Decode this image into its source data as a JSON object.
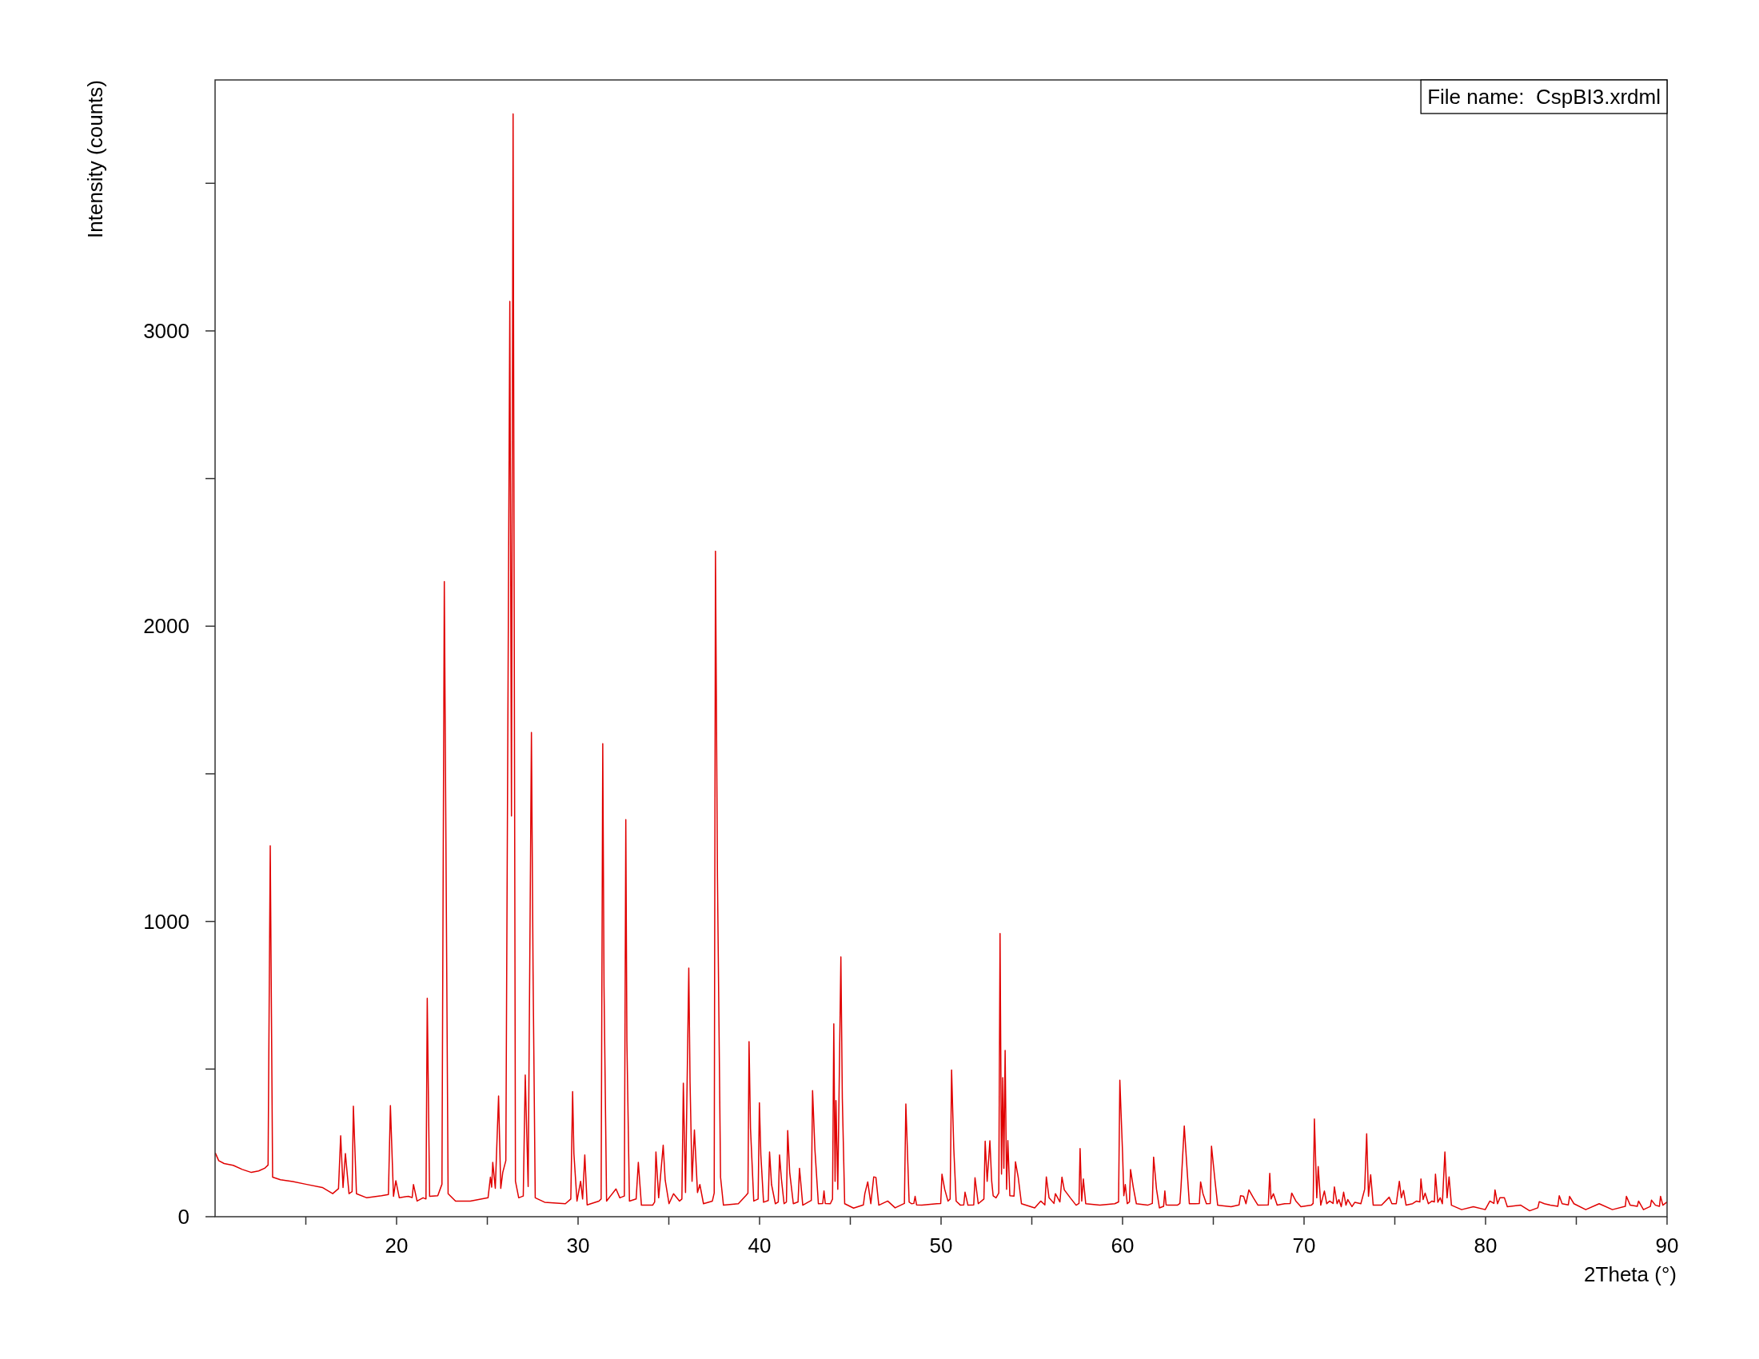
{
  "chart_data": {
    "type": "line",
    "xlabel": "2Theta (°)",
    "ylabel": "Intensity (counts)",
    "annotations": [
      "File name:  CspBI3.xrdml"
    ],
    "color": "#e00000",
    "xlim": [
      10,
      90
    ],
    "ylim": [
      0,
      3850
    ],
    "xticks": [
      {
        "value": 15,
        "label": null
      },
      20,
      {
        "value": 25,
        "label": null
      },
      30,
      {
        "value": 35,
        "label": null
      },
      40,
      {
        "value": 45,
        "label": null
      },
      50,
      {
        "value": 55,
        "label": null
      },
      60,
      {
        "value": 65,
        "label": null
      },
      70,
      {
        "value": 75,
        "label": null
      },
      80,
      {
        "value": 85,
        "label": null
      },
      90
    ],
    "yticks": [
      0,
      {
        "value": 500,
        "label": null
      },
      1000,
      {
        "value": 1500,
        "label": null
      },
      2000,
      {
        "value": 2500,
        "label": null
      },
      3000,
      {
        "value": 3500,
        "label": null
      }
    ],
    "x": [
      10.02,
      10.2,
      10.5,
      11.0,
      11.5,
      12.0,
      12.4,
      12.73,
      12.92,
      13.04,
      13.17,
      13.6,
      14.28,
      15.0,
      15.91,
      16.48,
      16.8,
      16.92,
      17.05,
      17.18,
      17.38,
      17.55,
      17.62,
      17.79,
      18.36,
      19.17,
      19.55,
      19.66,
      19.83,
      19.96,
      20.15,
      20.64,
      20.86,
      20.93,
      21.13,
      21.46,
      21.62,
      21.69,
      21.82,
      22.27,
      22.5,
      22.63,
      22.84,
      23.25,
      24.06,
      25.04,
      25.17,
      25.24,
      25.3,
      25.44,
      25.62,
      25.74,
      25.85,
      26.02,
      26.24,
      26.33,
      26.42,
      26.55,
      26.73,
      26.98,
      27.09,
      27.25,
      27.43,
      27.52,
      27.64,
      28.16,
      29.3,
      29.6,
      29.7,
      29.77,
      29.94,
      30.14,
      30.25,
      30.37,
      30.5,
      31.15,
      31.27,
      31.36,
      31.43,
      31.57,
      32.09,
      32.3,
      32.55,
      32.63,
      32.69,
      32.83,
      33.2,
      33.32,
      33.49,
      34.11,
      34.22,
      34.29,
      34.44,
      34.69,
      34.8,
      35.01,
      35.26,
      35.59,
      35.72,
      35.8,
      35.92,
      36.1,
      36.17,
      36.28,
      36.41,
      36.58,
      36.71,
      36.91,
      37.4,
      37.5,
      37.57,
      37.68,
      37.85,
      38.01,
      38.83,
      39.24,
      39.36,
      39.42,
      39.5,
      39.68,
      39.92,
      39.99,
      40.07,
      40.22,
      40.48,
      40.55,
      40.66,
      40.87,
      41.03,
      41.1,
      41.2,
      41.35,
      41.48,
      41.55,
      41.66,
      41.86,
      42.12,
      42.2,
      42.38,
      42.67,
      42.85,
      42.92,
      43.05,
      43.24,
      43.48,
      43.55,
      43.62,
      43.9,
      44.02,
      44.09,
      44.16,
      44.21,
      44.31,
      44.48,
      44.56,
      44.69,
      45.18,
      45.72,
      45.8,
      45.96,
      46.13,
      46.29,
      46.41,
      46.57,
      47.06,
      47.47,
      47.98,
      48.06,
      48.17,
      48.24,
      48.37,
      48.5,
      48.57,
      48.65,
      48.94,
      49.76,
      49.98,
      50.05,
      50.2,
      50.38,
      50.5,
      50.58,
      50.7,
      50.83,
      51.07,
      51.25,
      51.32,
      51.48,
      51.8,
      51.87,
      52.05,
      52.36,
      52.43,
      52.54,
      52.69,
      52.79,
      52.87,
      53.03,
      53.18,
      53.25,
      53.33,
      53.4,
      53.46,
      53.53,
      53.61,
      53.68,
      53.79,
      54.02,
      54.1,
      54.25,
      54.43,
      55.16,
      55.49,
      55.72,
      55.8,
      55.95,
      56.22,
      56.3,
      56.55,
      56.66,
      56.79,
      57.12,
      57.44,
      57.6,
      57.66,
      57.75,
      57.84,
      57.97,
      58.75,
      59.57,
      59.78,
      59.85,
      60.0,
      60.07,
      60.15,
      60.26,
      60.38,
      60.44,
      60.59,
      60.76,
      61.38,
      61.64,
      61.71,
      61.87,
      62.03,
      62.26,
      62.33,
      62.4,
      62.53,
      63.02,
      63.16,
      63.22,
      63.4,
      63.55,
      63.68,
      64.0,
      64.23,
      64.3,
      64.43,
      64.62,
      64.83,
      64.9,
      65.09,
      65.24,
      65.98,
      66.42,
      66.5,
      66.67,
      66.8,
      66.96,
      67.21,
      67.46,
      68.03,
      68.11,
      68.18,
      68.31,
      68.52,
      68.93,
      69.24,
      69.32,
      69.55,
      69.83,
      70.4,
      70.5,
      70.57,
      70.7,
      70.78,
      70.92,
      71.12,
      71.25,
      71.41,
      71.6,
      71.67,
      71.82,
      71.92,
      72.05,
      72.18,
      72.31,
      72.41,
      72.64,
      72.8,
      73.13,
      73.34,
      73.45,
      73.55,
      73.67,
      73.81,
      74.27,
      74.69,
      74.84,
      75.08,
      75.25,
      75.36,
      75.48,
      75.62,
      75.98,
      76.2,
      76.38,
      76.44,
      76.56,
      76.67,
      76.85,
      77.05,
      77.18,
      77.24,
      77.37,
      77.5,
      77.62,
      77.76,
      77.88,
      77.99,
      78.12,
      78.68,
      79.33,
      79.98,
      80.24,
      80.46,
      80.52,
      80.66,
      80.79,
      81.04,
      81.2,
      81.94,
      82.43,
      82.88,
      82.96,
      83.24,
      83.57,
      83.98,
      84.06,
      84.22,
      84.56,
      84.63,
      84.87,
      85.52,
      86.26,
      86.99,
      87.7,
      87.76,
      87.97,
      88.36,
      88.43,
      88.7,
      89.08,
      89.14,
      89.36,
      89.58,
      89.64,
      89.77,
      89.98
    ],
    "values": [
      215,
      190,
      180,
      174,
      160,
      150,
      155,
      164,
      175,
      1256,
      134,
      125,
      119,
      110,
      99,
      78,
      95,
      274,
      99,
      214,
      78,
      85,
      374,
      78,
      64,
      71,
      75,
      376,
      69,
      122,
      64,
      69,
      65,
      109,
      53,
      64,
      60,
      740,
      69,
      71,
      110,
      2151,
      78,
      53,
      53,
      64,
      134,
      100,
      184,
      96,
      409,
      96,
      150,
      190,
      3100,
      1357,
      3735,
      120,
      64,
      70,
      480,
      102,
      1640,
      830,
      64,
      49,
      44,
      60,
      424,
      214,
      53,
      120,
      60,
      209,
      40,
      53,
      60,
      1602,
      780,
      53,
      94,
      64,
      70,
      1345,
      595,
      53,
      60,
      184,
      39,
      39,
      50,
      219,
      64,
      242,
      124,
      44,
      78,
      53,
      60,
      452,
      82,
      842,
      455,
      120,
      294,
      82,
      109,
      44,
      53,
      80,
      2254,
      1151,
      134,
      39,
      44,
      71,
      80,
      593,
      299,
      53,
      60,
      386,
      209,
      49,
      55,
      219,
      109,
      44,
      50,
      209,
      130,
      44,
      50,
      292,
      150,
      44,
      50,
      164,
      39,
      49,
      55,
      427,
      227,
      44,
      45,
      87,
      45,
      44,
      60,
      653,
      120,
      393,
      93,
      880,
      400,
      44,
      29,
      40,
      78,
      118,
      44,
      135,
      133,
      39,
      53,
      30,
      45,
      382,
      180,
      50,
      44,
      45,
      69,
      40,
      39,
      44,
      45,
      144,
      93,
      53,
      60,
      497,
      232,
      53,
      39,
      40,
      83,
      39,
      40,
      132,
      44,
      60,
      256,
      120,
      257,
      120,
      71,
      64,
      80,
      959,
      144,
      471,
      164,
      563,
      93,
      258,
      71,
      70,
      186,
      134,
      44,
      30,
      53,
      40,
      135,
      64,
      45,
      78,
      50,
      134,
      91,
      64,
      39,
      45,
      231,
      53,
      128,
      44,
      39,
      44,
      50,
      462,
      216,
      71,
      109,
      44,
      50,
      160,
      100,
      44,
      39,
      45,
      202,
      93,
      30,
      35,
      87,
      40,
      39,
      39,
      45,
      100,
      307,
      164,
      44,
      44,
      45,
      118,
      78,
      44,
      45,
      239,
      124,
      39,
      34,
      40,
      71,
      69,
      44,
      91,
      64,
      39,
      40,
      147,
      60,
      78,
      39,
      44,
      45,
      80,
      53,
      34,
      39,
      45,
      331,
      64,
      170,
      39,
      87,
      44,
      53,
      45,
      101,
      44,
      58,
      34,
      83,
      39,
      58,
      34,
      49,
      44,
      93,
      281,
      69,
      142,
      39,
      39,
      66,
      44,
      44,
      120,
      64,
      89,
      39,
      44,
      53,
      50,
      128,
      58,
      80,
      44,
      53,
      50,
      144,
      49,
      64,
      44,
      219,
      64,
      135,
      39,
      24,
      34,
      24,
      53,
      45,
      91,
      44,
      64,
      64,
      34,
      39,
      20,
      30,
      51,
      44,
      39,
      35,
      71,
      44,
      40,
      69,
      44,
      24,
      44,
      24,
      35,
      69,
      39,
      35,
      53,
      24,
      35,
      56,
      39,
      35,
      69,
      39,
      49
    ]
  }
}
